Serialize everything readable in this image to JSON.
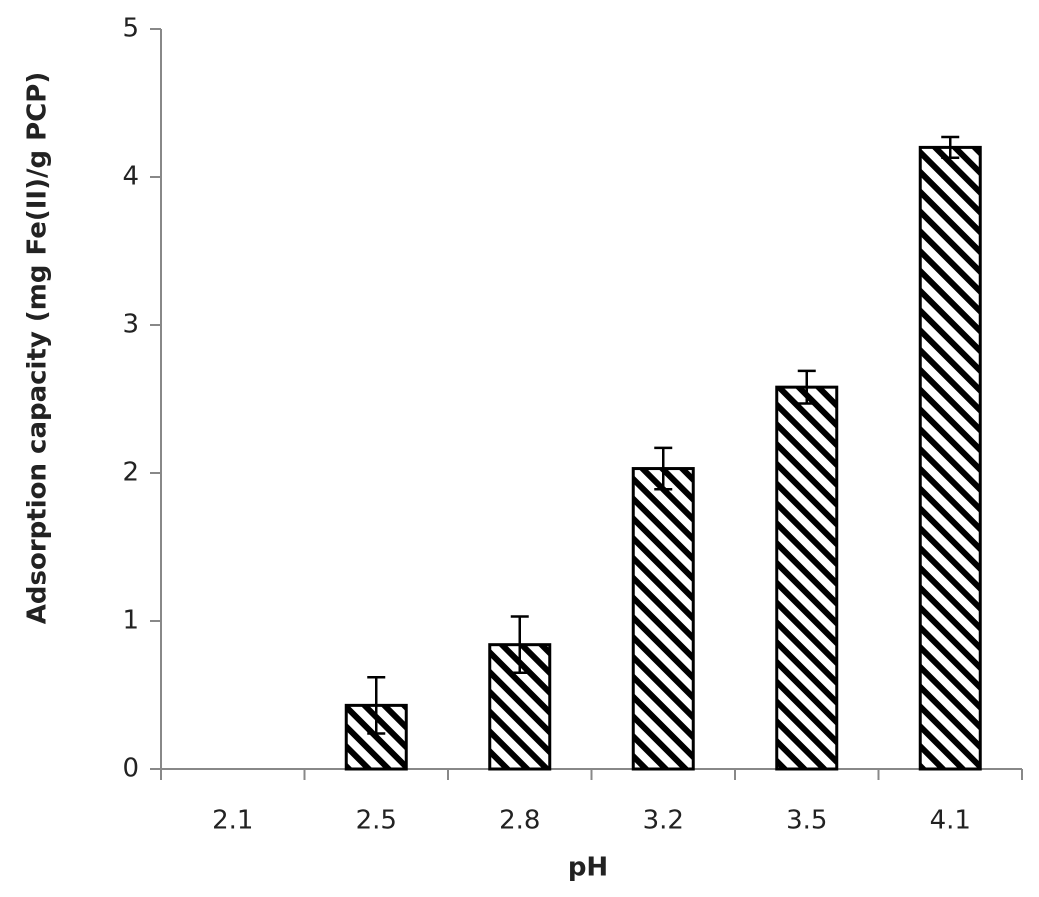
{
  "chart_data": {
    "type": "bar",
    "x_label": "pH",
    "y_label": "Adsorption capacity (mg Fe(II)/g PCP)",
    "categories": [
      "2.1",
      "2.5",
      "2.8",
      "3.2",
      "3.5",
      "4.1"
    ],
    "values": [
      0,
      0.43,
      0.84,
      2.03,
      2.58,
      4.2
    ],
    "errors": [
      null,
      0.19,
      0.19,
      0.14,
      0.11,
      0.07
    ],
    "color": "#000000",
    "ylim": [
      0,
      5
    ],
    "yticks": [
      0,
      1,
      2,
      3,
      4,
      5
    ],
    "grid": false
  }
}
